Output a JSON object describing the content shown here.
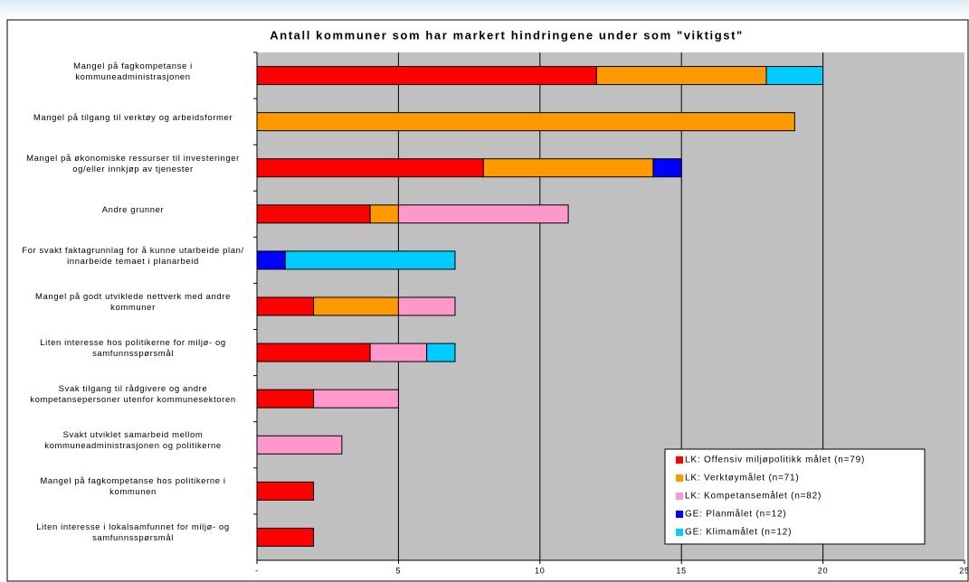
{
  "chart_data": {
    "type": "stacked-barh",
    "title": "Antall kommuner som har markert hindringene under som \"viktigst\"",
    "categories": [
      "Mangel på fagkompetanse i kommuneadministrasjonen",
      "Mangel på tilgang til verktøy og arbeidsformer",
      "Mangel på økonomiske ressurser til investeringer og/eller innkjøp av tjenester",
      "Andre grunner",
      "For svakt faktagrunnlag for å kunne utarbeide plan/ innarbeide temaet i planarbeid",
      "Mangel på godt utviklede nettverk med andre kommuner",
      "Liten interesse hos politikerne for miljø- og samfunnsspørsmål",
      "Svak tilgang til rådgivere og andre kompetansepersoner utenfor kommunesektoren",
      "Svakt utviklet samarbeid mellom kommuneadministrasjonen og politikerne",
      "Mangel på fagkompetanse hos politikerne i kommunen",
      "Liten interesse i lokalsamfunnet for miljø- og samfunnsspørsmål"
    ],
    "series": [
      {
        "name": "LK: Offensiv miljøpolitikk målet (n=79)",
        "color": "#ff0000",
        "values": [
          12,
          0,
          8,
          4,
          0,
          2,
          4,
          2,
          0,
          2,
          2
        ]
      },
      {
        "name": "LK: Verktøymålet (n=71)",
        "color": "#ff9900",
        "values": [
          6,
          19,
          6,
          1,
          0,
          3,
          0,
          0,
          0,
          0,
          0
        ]
      },
      {
        "name": "LK: Kompetansemålet (n=82)",
        "color": "#ff99cc",
        "values": [
          0,
          0,
          0,
          6,
          0,
          2,
          2,
          3,
          3,
          0,
          0
        ]
      },
      {
        "name": "GE: Planmålet (n=12)",
        "color": "#0000ff",
        "values": [
          0,
          0,
          1,
          0,
          1,
          0,
          0,
          0,
          0,
          0,
          0
        ]
      },
      {
        "name": "GE: Klimamålet (n=12)",
        "color": "#00ccff",
        "values": [
          2,
          0,
          0,
          0,
          6,
          0,
          1,
          0,
          0,
          0,
          0
        ]
      }
    ],
    "xlim": [
      0,
      25
    ],
    "xticks": [
      {
        "value": 0,
        "label": "-"
      },
      5,
      10,
      15,
      20,
      25
    ],
    "grid": true,
    "legend": "bottom-right"
  }
}
